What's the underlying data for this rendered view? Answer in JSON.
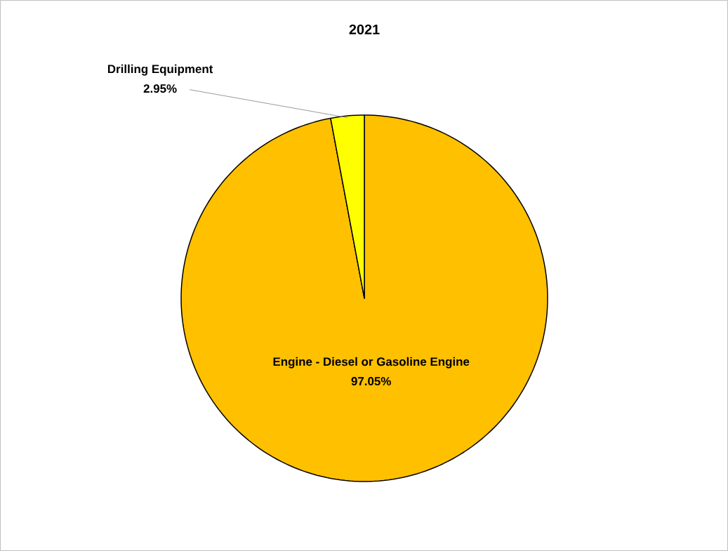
{
  "chart_data": {
    "type": "pie",
    "title": "2021",
    "categories": [
      "Engine - Diesel or Gasoline Engine",
      "Drilling Equipment"
    ],
    "values": [
      97.05,
      2.95
    ],
    "value_labels": [
      "97.05%",
      "2.95%"
    ],
    "colors": [
      "#ffc000",
      "#ffff00"
    ]
  }
}
